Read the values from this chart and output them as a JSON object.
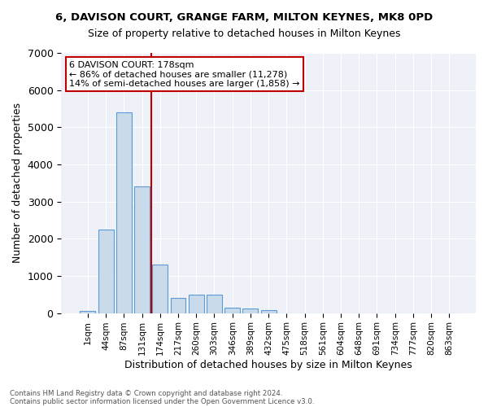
{
  "title_line1": "6, DAVISON COURT, GRANGE FARM, MILTON KEYNES, MK8 0PD",
  "title_line2": "Size of property relative to detached houses in Milton Keynes",
  "xlabel": "Distribution of detached houses by size in Milton Keynes",
  "ylabel": "Number of detached properties",
  "bar_labels": [
    "1sqm",
    "44sqm",
    "87sqm",
    "131sqm",
    "174sqm",
    "217sqm",
    "260sqm",
    "303sqm",
    "346sqm",
    "389sqm",
    "432sqm",
    "475sqm",
    "518sqm",
    "561sqm",
    "604sqm",
    "648sqm",
    "691sqm",
    "734sqm",
    "777sqm",
    "820sqm",
    "863sqm"
  ],
  "bar_values": [
    50,
    2250,
    5400,
    3400,
    1300,
    400,
    500,
    500,
    150,
    120,
    75,
    0,
    0,
    0,
    0,
    0,
    0,
    0,
    0,
    0,
    0
  ],
  "bar_color": "#c9daea",
  "bar_edge_color": "#5b9bd5",
  "vline_x": 3.5,
  "vline_color": "#c00000",
  "annotation_text": "6 DAVISON COURT: 178sqm\n← 86% of detached houses are smaller (11,278)\n14% of semi-detached houses are larger (1,858) →",
  "annotation_box_color": "#c00000",
  "annotation_text_color": "#000000",
  "ylim": [
    0,
    7000
  ],
  "yticks": [
    0,
    1000,
    2000,
    3000,
    4000,
    5000,
    6000,
    7000
  ],
  "background_color": "#eef2f8",
  "footer_line1": "Contains HM Land Registry data © Crown copyright and database right 2024.",
  "footer_line2": "Contains public sector information licensed under the Open Government Licence v3.0."
}
